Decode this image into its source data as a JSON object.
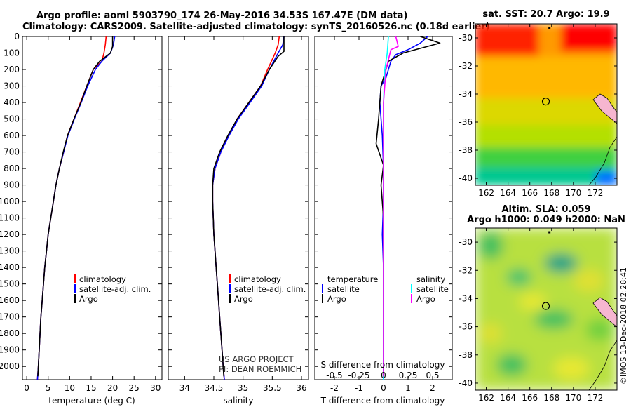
{
  "header": {
    "title_line1": "Argo profile: aoml 5903790_174 26-May-2016 34.53S 167.47E (DM data)",
    "title_line2": "Climatology: CARS2009. Satellite-adjusted climatology: synTS_20160526.nc (0.18d earlier)"
  },
  "colors": {
    "climatology": "#ff0000",
    "satellite": "#0000ff",
    "argo": "#000000",
    "sal_satellite": "#00ffff",
    "sal_argo": "#ff00ff"
  },
  "chart_data": [
    {
      "type": "line",
      "xlabel": "temperature (deg C)",
      "ylabel": "",
      "xlim": [
        -1,
        31.5
      ],
      "ylim": [
        2080,
        0
      ],
      "xticks": [
        0,
        5,
        10,
        15,
        20,
        25,
        30
      ],
      "xtick_labels": [
        "0",
        "5",
        "10",
        "15",
        "20",
        "25",
        "30"
      ],
      "yticks": [
        0,
        100,
        200,
        300,
        400,
        500,
        600,
        700,
        800,
        900,
        1000,
        1100,
        1200,
        1300,
        1400,
        1500,
        1600,
        1700,
        1800,
        1900,
        2000
      ],
      "ytick_labels": [
        "0",
        "100",
        "200",
        "300",
        "400",
        "500",
        "600",
        "700",
        "800",
        "900",
        "1000",
        "1100",
        "1200",
        "1300",
        "1400",
        "1500",
        "1600",
        "1700",
        "1800",
        "1900",
        "2000"
      ],
      "legend": [
        "climatology",
        "satellite-adj. clim.",
        "Argo"
      ],
      "series": [
        {
          "name": "climatology",
          "color": "#ff0000",
          "points": [
            [
              18.5,
              0
            ],
            [
              18.3,
              50
            ],
            [
              18,
              100
            ],
            [
              17.5,
              150
            ],
            [
              15.5,
              200
            ],
            [
              14,
              300
            ],
            [
              12.5,
              400
            ],
            [
              11,
              500
            ],
            [
              9.5,
              600
            ],
            [
              8.6,
              700
            ],
            [
              7.6,
              800
            ],
            [
              6.8,
              900
            ],
            [
              6.2,
              1000
            ],
            [
              5.6,
              1100
            ],
            [
              5,
              1200
            ],
            [
              4.6,
              1300
            ],
            [
              4.2,
              1400
            ],
            [
              3.9,
              1500
            ],
            [
              3.6,
              1600
            ],
            [
              3.3,
              1700
            ],
            [
              3.1,
              1800
            ],
            [
              2.9,
              1900
            ],
            [
              2.7,
              2000
            ],
            [
              2.5,
              2080
            ]
          ]
        },
        {
          "name": "satellite-adj. clim.",
          "color": "#0000ff",
          "points": [
            [
              20.5,
              0
            ],
            [
              20.2,
              50
            ],
            [
              19.5,
              100
            ],
            [
              17.5,
              150
            ],
            [
              16,
              200
            ],
            [
              14.2,
              300
            ],
            [
              12.7,
              400
            ],
            [
              11.1,
              500
            ],
            [
              9.6,
              600
            ],
            [
              8.6,
              700
            ],
            [
              7.6,
              800
            ],
            [
              6.8,
              900
            ],
            [
              6.2,
              1000
            ],
            [
              5.6,
              1100
            ],
            [
              5,
              1200
            ],
            [
              4.6,
              1300
            ],
            [
              4.2,
              1400
            ],
            [
              3.9,
              1500
            ],
            [
              3.6,
              1600
            ],
            [
              3.3,
              1700
            ],
            [
              3.1,
              1800
            ],
            [
              2.9,
              1900
            ],
            [
              2.7,
              2000
            ],
            [
              2.5,
              2080
            ]
          ]
        },
        {
          "name": "Argo",
          "color": "#000000",
          "points": [
            [
              20,
              0
            ],
            [
              20,
              60
            ],
            [
              19.5,
              100
            ],
            [
              17,
              150
            ],
            [
              15.5,
              200
            ],
            [
              14,
              300
            ],
            [
              12.6,
              400
            ],
            [
              11,
              500
            ],
            [
              9.5,
              600
            ],
            [
              8.5,
              700
            ],
            [
              7.6,
              800
            ],
            [
              6.8,
              900
            ],
            [
              6.2,
              1000
            ],
            [
              5.6,
              1100
            ],
            [
              5,
              1200
            ],
            [
              4.6,
              1300
            ],
            [
              4.2,
              1400
            ],
            [
              3.9,
              1500
            ],
            [
              3.6,
              1600
            ],
            [
              3.3,
              1700
            ],
            [
              3.1,
              1800
            ],
            [
              2.9,
              1900
            ],
            [
              2.7,
              2000
            ],
            [
              2.6,
              2060
            ]
          ]
        }
      ]
    },
    {
      "type": "line",
      "xlabel": "salinity",
      "ylabel": "",
      "xlim": [
        33.72,
        36.12
      ],
      "ylim": [
        2080,
        0
      ],
      "xticks": [
        34,
        34.5,
        35,
        35.5,
        36
      ],
      "xtick_labels": [
        "34",
        "34.5",
        "35",
        "35.5",
        "36"
      ],
      "legend": [
        "climatology",
        "satellite-adj. clim.",
        "Argo"
      ],
      "series": [
        {
          "name": "climatology",
          "color": "#ff0000",
          "points": [
            [
              35.62,
              0
            ],
            [
              35.6,
              50
            ],
            [
              35.55,
              100
            ],
            [
              35.42,
              200
            ],
            [
              35.3,
              300
            ],
            [
              35.1,
              400
            ],
            [
              34.9,
              500
            ],
            [
              34.75,
              600
            ],
            [
              34.62,
              700
            ],
            [
              34.52,
              800
            ],
            [
              34.48,
              900
            ],
            [
              34.48,
              1000
            ],
            [
              34.49,
              1100
            ],
            [
              34.5,
              1200
            ],
            [
              34.52,
              1300
            ],
            [
              34.54,
              1400
            ],
            [
              34.56,
              1500
            ],
            [
              34.58,
              1600
            ],
            [
              34.6,
              1700
            ],
            [
              34.62,
              1800
            ],
            [
              34.64,
              1900
            ],
            [
              34.66,
              2000
            ],
            [
              34.68,
              2080
            ]
          ]
        },
        {
          "name": "satellite-adj. clim.",
          "color": "#0000ff",
          "points": [
            [
              35.7,
              0
            ],
            [
              35.68,
              50
            ],
            [
              35.6,
              100
            ],
            [
              35.45,
              200
            ],
            [
              35.32,
              300
            ],
            [
              35.12,
              400
            ],
            [
              34.92,
              500
            ],
            [
              34.76,
              600
            ],
            [
              34.62,
              700
            ],
            [
              34.52,
              800
            ],
            [
              34.48,
              900
            ],
            [
              34.48,
              1000
            ],
            [
              34.49,
              1100
            ],
            [
              34.5,
              1200
            ],
            [
              34.52,
              1300
            ],
            [
              34.54,
              1400
            ],
            [
              34.56,
              1500
            ],
            [
              34.58,
              1600
            ],
            [
              34.6,
              1700
            ],
            [
              34.62,
              1800
            ],
            [
              34.64,
              1900
            ],
            [
              34.66,
              2000
            ],
            [
              34.68,
              2080
            ]
          ]
        },
        {
          "name": "Argo",
          "color": "#000000",
          "points": [
            [
              35.7,
              0
            ],
            [
              35.7,
              90
            ],
            [
              35.6,
              120
            ],
            [
              35.45,
              200
            ],
            [
              35.3,
              300
            ],
            [
              35.1,
              400
            ],
            [
              34.9,
              500
            ],
            [
              34.74,
              600
            ],
            [
              34.6,
              700
            ],
            [
              34.5,
              800
            ],
            [
              34.48,
              900
            ],
            [
              34.48,
              1000
            ],
            [
              34.49,
              1100
            ],
            [
              34.5,
              1200
            ],
            [
              34.52,
              1300
            ],
            [
              34.54,
              1400
            ],
            [
              34.56,
              1500
            ],
            [
              34.58,
              1600
            ],
            [
              34.6,
              1700
            ],
            [
              34.62,
              1800
            ],
            [
              34.64,
              1900
            ],
            [
              34.66,
              2000
            ],
            [
              34.67,
              2060
            ]
          ]
        }
      ]
    },
    {
      "type": "line",
      "xlabel": "T difference from climatology",
      "ylabel": "",
      "xlim": [
        -2.8,
        2.8
      ],
      "ylim": [
        2080,
        0
      ],
      "xticks": [
        -2,
        -1,
        0,
        1,
        2
      ],
      "xtick_labels": [
        "-2",
        "-1",
        "0",
        "1",
        "2"
      ],
      "xlabel2": "S difference from climatology",
      "xticks2": [
        -0.5,
        -0.25,
        0,
        0.25,
        0.5
      ],
      "xtick_labels2": [
        "-0.5",
        "-0.25",
        "0",
        "0.25",
        "0.5"
      ],
      "legend_left_title": "temperature",
      "legend_right_title": "salinity",
      "legend_left": [
        "satellite",
        "Argo"
      ],
      "legend_right": [
        "satellite",
        "Argo"
      ],
      "series": [
        {
          "name": "satellite",
          "color": "#0000ff",
          "points": [
            [
              1.8,
              0
            ],
            [
              1.5,
              40
            ],
            [
              1.0,
              80
            ],
            [
              0.5,
              110
            ],
            [
              0.3,
              150
            ],
            [
              0.1,
              250
            ],
            [
              -0.1,
              300
            ],
            [
              -0.15,
              400
            ],
            [
              -0.1,
              500
            ],
            [
              -0.05,
              600
            ],
            [
              0.0,
              800
            ],
            [
              0.0,
              1000
            ],
            [
              -0.05,
              1200
            ],
            [
              0.0,
              1400
            ],
            [
              0.0,
              1600
            ],
            [
              0.0,
              1800
            ],
            [
              0.0,
              2080
            ]
          ]
        },
        {
          "name": "Argo",
          "color": "#000000",
          "points": [
            [
              1.5,
              0
            ],
            [
              2.3,
              40
            ],
            [
              0.8,
              100
            ],
            [
              0.2,
              150
            ],
            [
              -0.1,
              300
            ],
            [
              -0.2,
              500
            ],
            [
              -0.3,
              650
            ],
            [
              0.0,
              780
            ],
            [
              -0.1,
              900
            ],
            [
              0.0,
              1100
            ],
            [
              0.0,
              1400
            ],
            [
              0.0,
              1600
            ],
            [
              0.0,
              1800
            ],
            [
              0.0,
              2060
            ]
          ]
        },
        {
          "name": "satellite",
          "color": "#00ffff",
          "points": [
            [
              0.2,
              0
            ],
            [
              0.15,
              100
            ],
            [
              0.05,
              200
            ],
            [
              0.0,
              400
            ],
            [
              0.0,
              600
            ],
            [
              0.0,
              800
            ],
            [
              0.0,
              1000
            ],
            [
              0.0,
              1500
            ],
            [
              0.0,
              2080
            ]
          ]
        },
        {
          "name": "Argo",
          "color": "#ff00ff",
          "points": [
            [
              0.5,
              0
            ],
            [
              0.6,
              60
            ],
            [
              0.3,
              80
            ],
            [
              0.1,
              200
            ],
            [
              0.0,
              400
            ],
            [
              0.0,
              800
            ],
            [
              0.0,
              1200
            ],
            [
              0.0,
              1600
            ],
            [
              0.0,
              2060
            ]
          ]
        }
      ]
    },
    {
      "type": "heatmap",
      "title": "sat. SST: 20.7 Argo: 19.9",
      "xlim": [
        161,
        174
      ],
      "ylim": [
        -40.5,
        -29
      ],
      "xticks": [
        162,
        164,
        166,
        168,
        170,
        172
      ],
      "xtick_labels": [
        "162",
        "164",
        "166",
        "168",
        "170",
        "172"
      ],
      "yticks": [
        -30,
        -32,
        -34,
        -36,
        -38,
        -40
      ],
      "ytick_labels": [
        "-30",
        "-32",
        "-34",
        "-36",
        "-38",
        "-40"
      ],
      "marker": [
        167.47,
        -34.53
      ],
      "top_marker": [
        167.8,
        -29.3
      ]
    },
    {
      "type": "heatmap",
      "title_line1": "Altim. SLA: 0.059",
      "title_line2": "Argo h1000: 0.049 h2000: NaN",
      "xlim": [
        161,
        174
      ],
      "ylim": [
        -40.5,
        -29
      ],
      "xticks": [
        162,
        164,
        166,
        168,
        170,
        172
      ],
      "xtick_labels": [
        "162",
        "164",
        "166",
        "168",
        "170",
        "172"
      ],
      "yticks": [
        -30,
        -32,
        -34,
        -36,
        -38,
        -40
      ],
      "ytick_labels": [
        "-30",
        "-32",
        "-34",
        "-36",
        "-38",
        "-40"
      ],
      "marker": [
        167.47,
        -34.53
      ],
      "top_marker": [
        167.8,
        -29.3
      ]
    }
  ],
  "credits": {
    "project": "US ARGO PROJECT",
    "pi": "PI: DEAN ROEMMICH",
    "stamp": "©IMOS 13-Dec-2018 02:28:41"
  }
}
